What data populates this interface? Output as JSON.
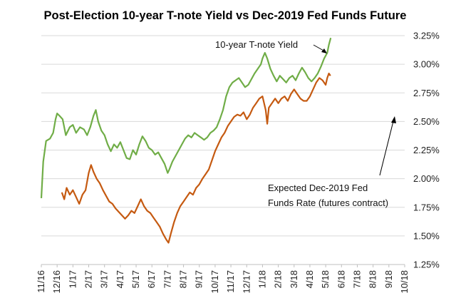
{
  "chart_data": {
    "type": "line",
    "title": "Post-Election 10-year T-note Yield vs Dec-2019 Fed Funds Future",
    "xlabel": "",
    "ylabel": "",
    "x_tick_labels": [
      "11/16",
      "12/16",
      "1/17",
      "2/17",
      "3/17",
      "4/17",
      "5/17",
      "6/17",
      "7/17",
      "8/17",
      "9/17",
      "10/17",
      "11/17",
      "12/17",
      "1/18",
      "2/18",
      "3/18",
      "4/18",
      "5/18",
      "6/18",
      "7/18",
      "8/18",
      "9/18",
      "10/18"
    ],
    "y_tick_labels": [
      "1.25%",
      "1.50%",
      "1.75%",
      "2.00%",
      "2.25%",
      "2.50%",
      "2.75%",
      "3.00%",
      "3.25%"
    ],
    "ylim": [
      1.25,
      3.25
    ],
    "grid": "horizontal",
    "colors": {
      "yield": "#70ad47",
      "fed": "#c55a11"
    },
    "annotations": [
      {
        "label_lines": [
          "10-year T-note Yield"
        ]
      },
      {
        "label_lines": [
          "Expected Dec-2019 Fed",
          "Funds Rate (futures contract)"
        ]
      }
    ],
    "series": [
      {
        "name": "10-year T-note Yield",
        "color": "#70ad47",
        "points": [
          [
            0.0,
            1.83
          ],
          [
            0.12,
            2.15
          ],
          [
            0.3,
            2.33
          ],
          [
            0.55,
            2.35
          ],
          [
            0.75,
            2.4
          ],
          [
            0.9,
            2.52
          ],
          [
            1.0,
            2.57
          ],
          [
            1.15,
            2.55
          ],
          [
            1.35,
            2.52
          ],
          [
            1.55,
            2.38
          ],
          [
            1.8,
            2.45
          ],
          [
            2.0,
            2.47
          ],
          [
            2.2,
            2.4
          ],
          [
            2.45,
            2.45
          ],
          [
            2.7,
            2.43
          ],
          [
            2.9,
            2.38
          ],
          [
            3.1,
            2.45
          ],
          [
            3.3,
            2.55
          ],
          [
            3.45,
            2.6
          ],
          [
            3.6,
            2.5
          ],
          [
            3.8,
            2.42
          ],
          [
            4.0,
            2.38
          ],
          [
            4.2,
            2.3
          ],
          [
            4.4,
            2.24
          ],
          [
            4.6,
            2.3
          ],
          [
            4.8,
            2.27
          ],
          [
            5.0,
            2.32
          ],
          [
            5.2,
            2.25
          ],
          [
            5.4,
            2.18
          ],
          [
            5.6,
            2.17
          ],
          [
            5.8,
            2.25
          ],
          [
            6.0,
            2.21
          ],
          [
            6.2,
            2.3
          ],
          [
            6.4,
            2.37
          ],
          [
            6.6,
            2.33
          ],
          [
            6.8,
            2.27
          ],
          [
            7.0,
            2.25
          ],
          [
            7.2,
            2.21
          ],
          [
            7.4,
            2.23
          ],
          [
            7.6,
            2.18
          ],
          [
            7.8,
            2.13
          ],
          [
            8.0,
            2.05
          ],
          [
            8.1,
            2.08
          ],
          [
            8.3,
            2.15
          ],
          [
            8.5,
            2.2
          ],
          [
            8.7,
            2.25
          ],
          [
            8.9,
            2.3
          ],
          [
            9.1,
            2.35
          ],
          [
            9.3,
            2.38
          ],
          [
            9.5,
            2.36
          ],
          [
            9.7,
            2.4
          ],
          [
            9.9,
            2.38
          ],
          [
            10.1,
            2.36
          ],
          [
            10.3,
            2.34
          ],
          [
            10.5,
            2.36
          ],
          [
            10.7,
            2.4
          ],
          [
            10.9,
            2.42
          ],
          [
            11.1,
            2.45
          ],
          [
            11.3,
            2.52
          ],
          [
            11.5,
            2.6
          ],
          [
            11.7,
            2.72
          ],
          [
            11.9,
            2.8
          ],
          [
            12.1,
            2.84
          ],
          [
            12.3,
            2.86
          ],
          [
            12.5,
            2.88
          ],
          [
            12.7,
            2.84
          ],
          [
            12.9,
            2.8
          ],
          [
            13.1,
            2.82
          ],
          [
            13.3,
            2.87
          ],
          [
            13.5,
            2.92
          ],
          [
            13.7,
            2.96
          ],
          [
            13.9,
            3.0
          ],
          [
            14.0,
            3.05
          ],
          [
            14.15,
            3.1
          ],
          [
            14.3,
            3.05
          ],
          [
            14.5,
            2.96
          ],
          [
            14.7,
            2.9
          ],
          [
            14.9,
            2.85
          ],
          [
            15.1,
            2.9
          ],
          [
            15.3,
            2.87
          ],
          [
            15.5,
            2.84
          ],
          [
            15.7,
            2.88
          ],
          [
            15.9,
            2.9
          ],
          [
            16.1,
            2.86
          ],
          [
            16.3,
            2.92
          ],
          [
            16.5,
            2.97
          ],
          [
            16.7,
            2.93
          ],
          [
            16.9,
            2.88
          ],
          [
            17.1,
            2.85
          ],
          [
            17.3,
            2.88
          ],
          [
            17.5,
            2.92
          ],
          [
            17.7,
            2.98
          ],
          [
            17.9,
            3.05
          ],
          [
            18.1,
            3.1
          ],
          [
            18.2,
            3.17
          ],
          [
            18.32,
            3.23
          ]
        ]
      },
      {
        "name": "Expected Dec-2019 Fed Funds Rate (futures contract)",
        "color": "#c55a11",
        "points": [
          [
            1.3,
            1.88
          ],
          [
            1.45,
            1.82
          ],
          [
            1.6,
            1.92
          ],
          [
            1.8,
            1.86
          ],
          [
            2.0,
            1.9
          ],
          [
            2.2,
            1.84
          ],
          [
            2.4,
            1.78
          ],
          [
            2.6,
            1.86
          ],
          [
            2.8,
            1.9
          ],
          [
            3.0,
            2.05
          ],
          [
            3.15,
            2.12
          ],
          [
            3.3,
            2.06
          ],
          [
            3.5,
            2.0
          ],
          [
            3.7,
            1.96
          ],
          [
            3.9,
            1.9
          ],
          [
            4.1,
            1.85
          ],
          [
            4.3,
            1.8
          ],
          [
            4.5,
            1.78
          ],
          [
            4.7,
            1.74
          ],
          [
            4.9,
            1.71
          ],
          [
            5.1,
            1.68
          ],
          [
            5.3,
            1.65
          ],
          [
            5.5,
            1.68
          ],
          [
            5.7,
            1.72
          ],
          [
            5.9,
            1.7
          ],
          [
            6.1,
            1.76
          ],
          [
            6.3,
            1.82
          ],
          [
            6.5,
            1.76
          ],
          [
            6.7,
            1.72
          ],
          [
            6.9,
            1.7
          ],
          [
            7.1,
            1.66
          ],
          [
            7.3,
            1.62
          ],
          [
            7.5,
            1.58
          ],
          [
            7.7,
            1.52
          ],
          [
            7.9,
            1.47
          ],
          [
            8.05,
            1.44
          ],
          [
            8.2,
            1.52
          ],
          [
            8.4,
            1.62
          ],
          [
            8.6,
            1.7
          ],
          [
            8.8,
            1.76
          ],
          [
            9.0,
            1.8
          ],
          [
            9.2,
            1.84
          ],
          [
            9.4,
            1.88
          ],
          [
            9.6,
            1.86
          ],
          [
            9.8,
            1.92
          ],
          [
            10.0,
            1.95
          ],
          [
            10.2,
            2.0
          ],
          [
            10.4,
            2.04
          ],
          [
            10.6,
            2.08
          ],
          [
            10.8,
            2.16
          ],
          [
            11.0,
            2.24
          ],
          [
            11.2,
            2.3
          ],
          [
            11.4,
            2.36
          ],
          [
            11.6,
            2.4
          ],
          [
            11.8,
            2.46
          ],
          [
            12.0,
            2.5
          ],
          [
            12.2,
            2.54
          ],
          [
            12.4,
            2.56
          ],
          [
            12.6,
            2.55
          ],
          [
            12.8,
            2.58
          ],
          [
            13.0,
            2.52
          ],
          [
            13.2,
            2.56
          ],
          [
            13.4,
            2.62
          ],
          [
            13.6,
            2.66
          ],
          [
            13.8,
            2.7
          ],
          [
            14.0,
            2.72
          ],
          [
            14.2,
            2.6
          ],
          [
            14.3,
            2.48
          ],
          [
            14.4,
            2.62
          ],
          [
            14.6,
            2.66
          ],
          [
            14.8,
            2.7
          ],
          [
            15.0,
            2.66
          ],
          [
            15.2,
            2.7
          ],
          [
            15.4,
            2.72
          ],
          [
            15.6,
            2.68
          ],
          [
            15.8,
            2.74
          ],
          [
            16.0,
            2.78
          ],
          [
            16.2,
            2.74
          ],
          [
            16.4,
            2.7
          ],
          [
            16.6,
            2.68
          ],
          [
            16.8,
            2.68
          ],
          [
            17.0,
            2.72
          ],
          [
            17.2,
            2.78
          ],
          [
            17.4,
            2.84
          ],
          [
            17.6,
            2.88
          ],
          [
            17.8,
            2.86
          ],
          [
            18.0,
            2.82
          ],
          [
            18.1,
            2.88
          ],
          [
            18.2,
            2.92
          ],
          [
            18.3,
            2.9
          ]
        ]
      }
    ]
  }
}
